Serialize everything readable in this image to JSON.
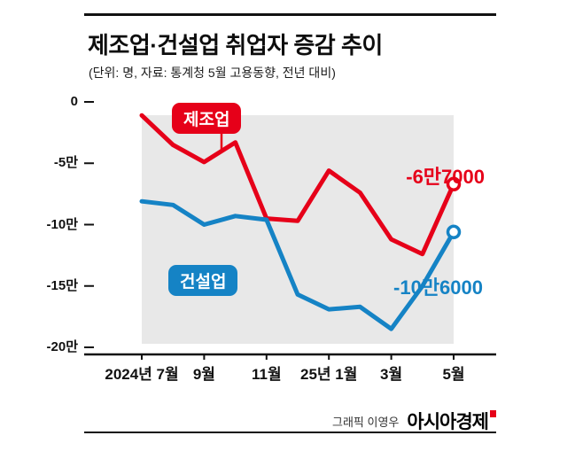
{
  "header": {
    "title": "제조업·건설업 취업자 증감 추이",
    "subtitle": "(단위: 명, 자료: 통계청 5월 고용동향, 전년 대비)"
  },
  "chart_data": {
    "type": "line",
    "title": "제조업·건설업 취업자 증감 추이",
    "unit_note": "단위: 명, 전년 대비, 값은 만 명 단위",
    "x_months": [
      "2024-07",
      "2024-08",
      "2024-09",
      "2024-10",
      "2024-11",
      "2024-12",
      "2025-01",
      "2025-02",
      "2025-03",
      "2025-04",
      "2025-05"
    ],
    "x_tick_labels": [
      "2024년 7월",
      "9월",
      "11월",
      "25년 1월",
      "3월",
      "5월"
    ],
    "x_tick_month_index": [
      0,
      2,
      4,
      6,
      8,
      10
    ],
    "y_ticks": [
      {
        "label": "0",
        "value": 0
      },
      {
        "label": "-5만",
        "value": -5
      },
      {
        "label": "-10만",
        "value": -10
      },
      {
        "label": "-15만",
        "value": -15
      },
      {
        "label": "-20만",
        "value": -20
      }
    ],
    "ylim": [
      -20,
      0
    ],
    "grid": false,
    "legend_position": "inline-labels",
    "plot_band_color": "#e8e8e8",
    "axis_color": "#111111",
    "series": [
      {
        "name": "제조업",
        "color": "#e60019",
        "values_man": [
          -1.1,
          -3.5,
          -4.9,
          -3.3,
          -9.5,
          -9.7,
          -5.6,
          -7.4,
          -11.2,
          -12.4,
          -6.7
        ],
        "end_label": "-6만7000"
      },
      {
        "name": "건설업",
        "color": "#1583c5",
        "values_man": [
          -8.1,
          -8.4,
          -10.0,
          -9.3,
          -9.6,
          -15.7,
          -16.9,
          -16.7,
          -18.5,
          -15.0,
          -10.6
        ],
        "end_label": "-10만6000"
      }
    ]
  },
  "footer": {
    "credit": "그래픽 이영우",
    "brand": "아시아경제",
    "brand_mark_color": "#e60019"
  }
}
